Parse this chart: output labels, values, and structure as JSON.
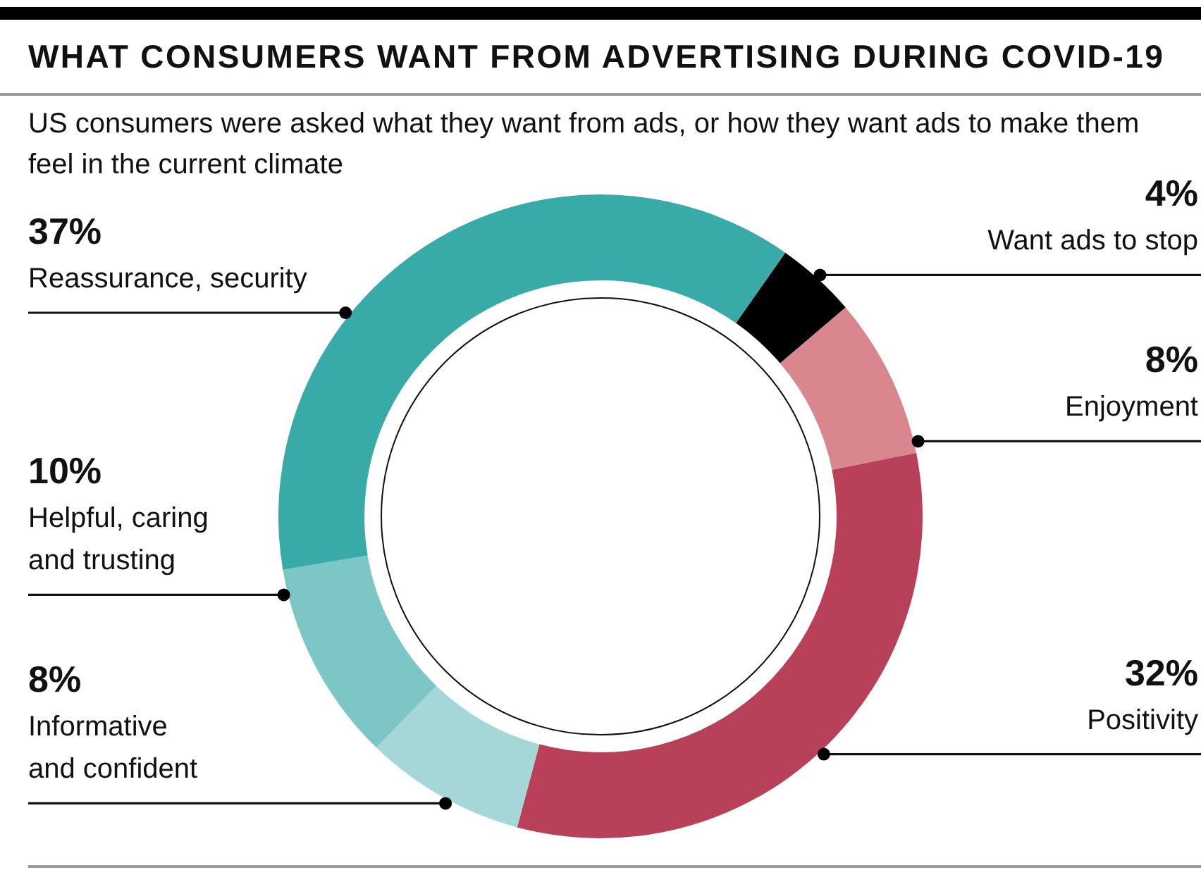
{
  "chart_data": {
    "type": "donut",
    "title": "WHAT CONSUMERS WANT FROM ADVERTISING DURING COVID-19",
    "subtitle": "US consumers were asked what they want from ads, or how they want ads to make them feel in the current climate",
    "categories": [
      "Want ads to stop",
      "Enjoyment",
      "Positivity",
      "Informative and confident",
      "Helpful, caring and trusting",
      "Reassurance, security"
    ],
    "values": [
      4,
      8,
      32,
      8,
      10,
      37
    ],
    "value_labels": [
      "4%",
      "8%",
      "32%",
      "8%",
      "10%",
      "37%"
    ],
    "colors": [
      "#000000",
      "#d9868e",
      "#b84159",
      "#a5d7d9",
      "#7cc6c5",
      "#38aaa7"
    ]
  }
}
